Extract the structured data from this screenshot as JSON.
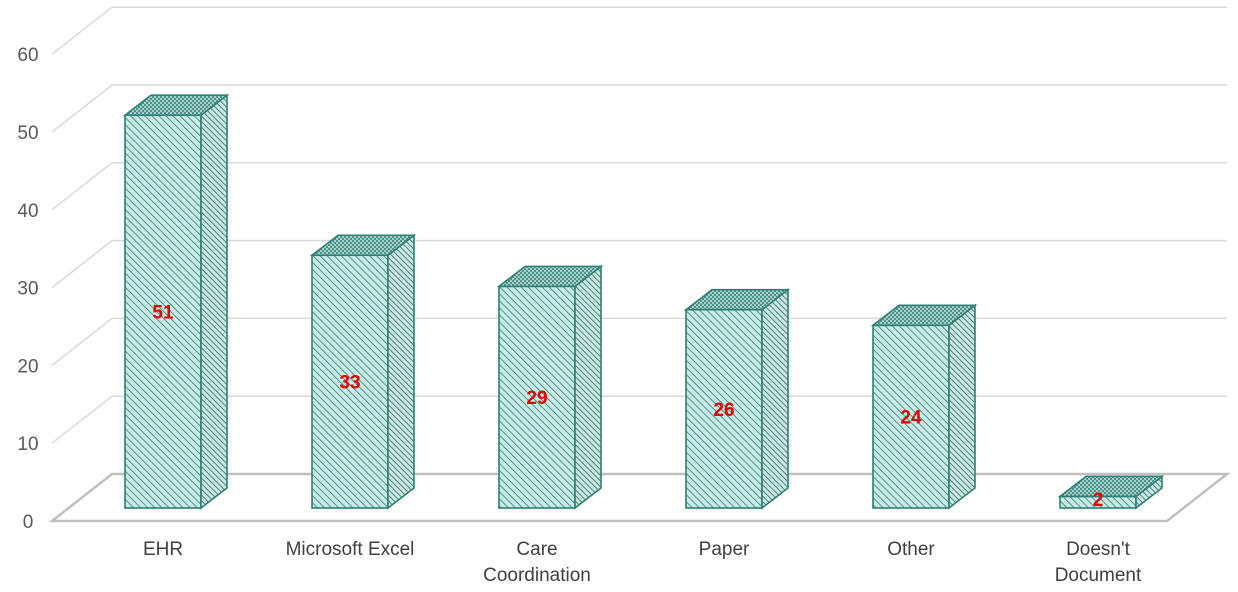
{
  "chart_data": {
    "type": "bar",
    "style": "3d-column",
    "categories": [
      "EHR",
      "Microsoft Excel",
      "Care Coordination",
      "Paper",
      "Other",
      "Doesn't Document"
    ],
    "category_lines": [
      [
        "EHR"
      ],
      [
        "Microsoft Excel"
      ],
      [
        "Care",
        "Coordination"
      ],
      [
        "Paper"
      ],
      [
        "Other"
      ],
      [
        "Doesn't",
        "Document"
      ]
    ],
    "values": [
      51,
      33,
      29,
      26,
      24,
      2
    ],
    "data_labels": [
      "51",
      "33",
      "29",
      "26",
      "24",
      "2"
    ],
    "ylim": [
      0,
      60
    ],
    "yticks": [
      0,
      10,
      20,
      30,
      40,
      50,
      60
    ],
    "title": "",
    "xlabel": "",
    "ylabel": "",
    "grid": true,
    "legend": "none",
    "colors": {
      "bar_front": "#c9ebe6",
      "bar_hatch": "#2f7f74",
      "bar_side": "#cfe6e2",
      "bar_top": "#a9cfc9",
      "bar_outline": "#2f7f74",
      "gridline": "#d9d9d9",
      "floor": "#bfbfbf",
      "data_label": "#e60000",
      "axis_text": "#595959"
    }
  }
}
